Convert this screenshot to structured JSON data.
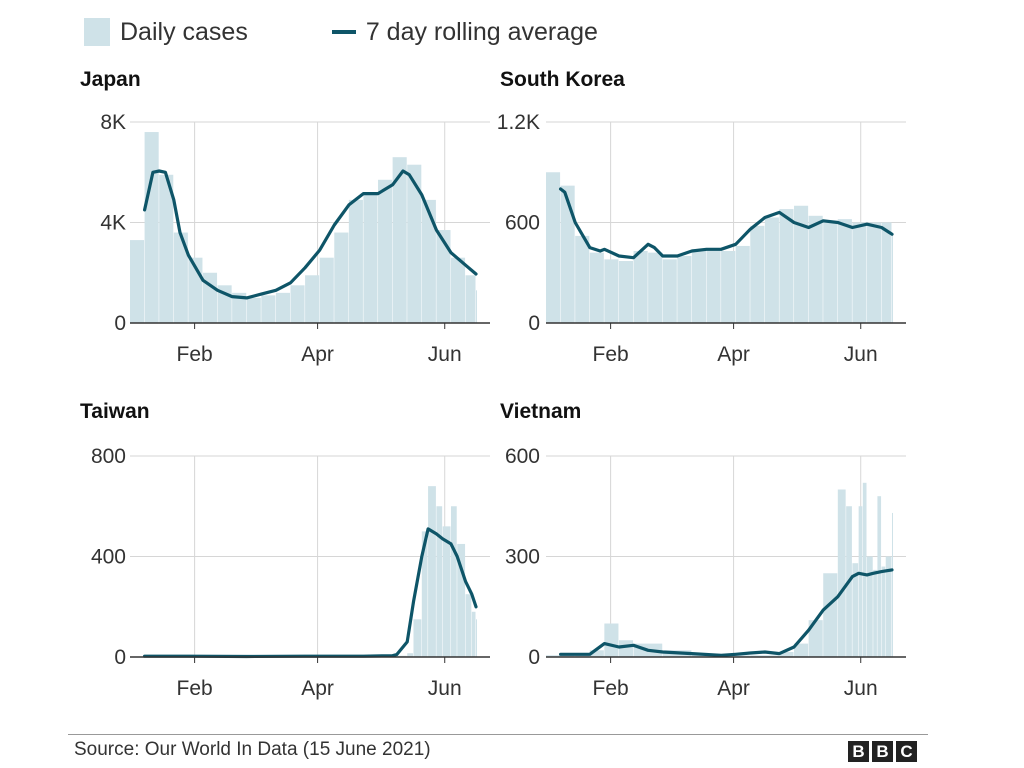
{
  "legend": {
    "bars_label": "Daily cases",
    "line_label": "7 day rolling average"
  },
  "colors": {
    "bar": "#cfe2e8",
    "line": "#0e5568",
    "grid": "#d6d6d6",
    "axis": "#333333"
  },
  "footer": {
    "source": "Source: Our World In Data (15 June 2021)",
    "logo": [
      "B",
      "B",
      "C"
    ]
  },
  "chart_data": [
    {
      "type": "bar",
      "title": "Japan",
      "x_ticks": [
        "Feb",
        "Apr",
        "Jun"
      ],
      "y_ticks": [
        "0",
        "4K",
        "8K"
      ],
      "ylim": [
        0,
        8000
      ],
      "grid": true,
      "series": [
        {
          "name": "Daily cases",
          "kind": "bar",
          "x": [
            0,
            7,
            14,
            21,
            28,
            35,
            42,
            49,
            56,
            63,
            70,
            77,
            84,
            91,
            98,
            105,
            112,
            119,
            126,
            133,
            140,
            147,
            154,
            161,
            166
          ],
          "values": [
            3300,
            7600,
            5900,
            3600,
            2600,
            2000,
            1500,
            1200,
            1000,
            1100,
            1200,
            1500,
            1900,
            2600,
            3600,
            4900,
            5100,
            5700,
            6600,
            6300,
            4900,
            3700,
            2600,
            1900,
            1300
          ]
        },
        {
          "name": "7 day rolling average",
          "kind": "line",
          "x": [
            7,
            11,
            14,
            17,
            21,
            24,
            28,
            35,
            42,
            49,
            56,
            63,
            70,
            77,
            84,
            91,
            98,
            105,
            112,
            119,
            126,
            131,
            134,
            140,
            147,
            154,
            161,
            166
          ],
          "values": [
            4500,
            6000,
            6050,
            6000,
            4900,
            3600,
            2700,
            1700,
            1300,
            1050,
            1000,
            1150,
            1300,
            1600,
            2200,
            2900,
            3900,
            4700,
            5150,
            5150,
            5500,
            6050,
            5900,
            5100,
            3700,
            2800,
            2300,
            1950
          ]
        }
      ]
    },
    {
      "type": "bar",
      "title": "South Korea",
      "x_ticks": [
        "Feb",
        "Apr",
        "Jun"
      ],
      "y_ticks": [
        "0",
        "600",
        "1.2K"
      ],
      "ylim": [
        0,
        1200
      ],
      "grid": true,
      "series": [
        {
          "name": "Daily cases",
          "kind": "bar",
          "x": [
            0,
            7,
            14,
            21,
            28,
            35,
            42,
            49,
            56,
            63,
            70,
            77,
            84,
            91,
            98,
            105,
            112,
            119,
            126,
            133,
            140,
            147,
            154,
            161,
            166
          ],
          "values": [
            900,
            820,
            520,
            420,
            380,
            370,
            430,
            420,
            380,
            400,
            440,
            440,
            430,
            460,
            580,
            630,
            680,
            700,
            640,
            610,
            620,
            600,
            600,
            600,
            520
          ]
        },
        {
          "name": "7 day rolling average",
          "kind": "line",
          "x": [
            7,
            9,
            14,
            21,
            26,
            28,
            35,
            42,
            49,
            52,
            56,
            63,
            70,
            77,
            84,
            91,
            98,
            105,
            112,
            119,
            126,
            133,
            140,
            147,
            154,
            161,
            166
          ],
          "values": [
            800,
            780,
            600,
            450,
            430,
            440,
            400,
            390,
            470,
            450,
            400,
            400,
            430,
            440,
            440,
            470,
            560,
            630,
            660,
            600,
            570,
            610,
            600,
            570,
            590,
            570,
            530
          ]
        }
      ]
    },
    {
      "type": "bar",
      "title": "Taiwan",
      "x_ticks": [
        "Feb",
        "Apr",
        "Jun"
      ],
      "y_ticks": [
        "0",
        "400",
        "800"
      ],
      "ylim": [
        0,
        800
      ],
      "grid": true,
      "series": [
        {
          "name": "Daily cases",
          "kind": "bar",
          "x": [
            0,
            14,
            28,
            42,
            56,
            70,
            84,
            98,
            112,
            126,
            133,
            136,
            140,
            143,
            147,
            150,
            154,
            157,
            161,
            164,
            166
          ],
          "values": [
            2,
            3,
            2,
            1,
            2,
            2,
            2,
            2,
            3,
            5,
            15,
            150,
            500,
            680,
            600,
            520,
            600,
            450,
            250,
            180,
            150
          ]
        },
        {
          "name": "7 day rolling average",
          "kind": "line",
          "x": [
            7,
            28,
            56,
            84,
            112,
            126,
            128,
            133,
            136,
            140,
            143,
            147,
            150,
            154,
            157,
            161,
            164,
            166
          ],
          "values": [
            3,
            3,
            2,
            3,
            3,
            5,
            10,
            60,
            220,
            400,
            510,
            490,
            470,
            450,
            400,
            300,
            250,
            200
          ]
        }
      ]
    },
    {
      "type": "bar",
      "title": "Vietnam",
      "x_ticks": [
        "Feb",
        "Apr",
        "Jun"
      ],
      "y_ticks": [
        "0",
        "300",
        "600"
      ],
      "ylim": [
        0,
        600
      ],
      "grid": true,
      "series": [
        {
          "name": "Daily cases",
          "kind": "bar",
          "x": [
            0,
            14,
            21,
            28,
            35,
            42,
            56,
            70,
            84,
            98,
            112,
            119,
            126,
            133,
            140,
            144,
            147,
            150,
            152,
            154,
            157,
            159,
            161,
            163,
            166
          ],
          "values": [
            5,
            5,
            20,
            100,
            50,
            40,
            20,
            10,
            5,
            5,
            15,
            40,
            110,
            250,
            500,
            450,
            280,
            450,
            520,
            300,
            260,
            480,
            270,
            300,
            430
          ]
        },
        {
          "name": "7 day rolling average",
          "kind": "line",
          "x": [
            7,
            21,
            28,
            35,
            42,
            49,
            56,
            70,
            84,
            91,
            98,
            105,
            112,
            119,
            126,
            133,
            140,
            147,
            150,
            154,
            157,
            161,
            164,
            166
          ],
          "values": [
            8,
            8,
            40,
            30,
            35,
            20,
            15,
            10,
            5,
            8,
            12,
            15,
            10,
            30,
            80,
            140,
            180,
            240,
            250,
            245,
            250,
            255,
            258,
            260
          ]
        }
      ]
    }
  ]
}
